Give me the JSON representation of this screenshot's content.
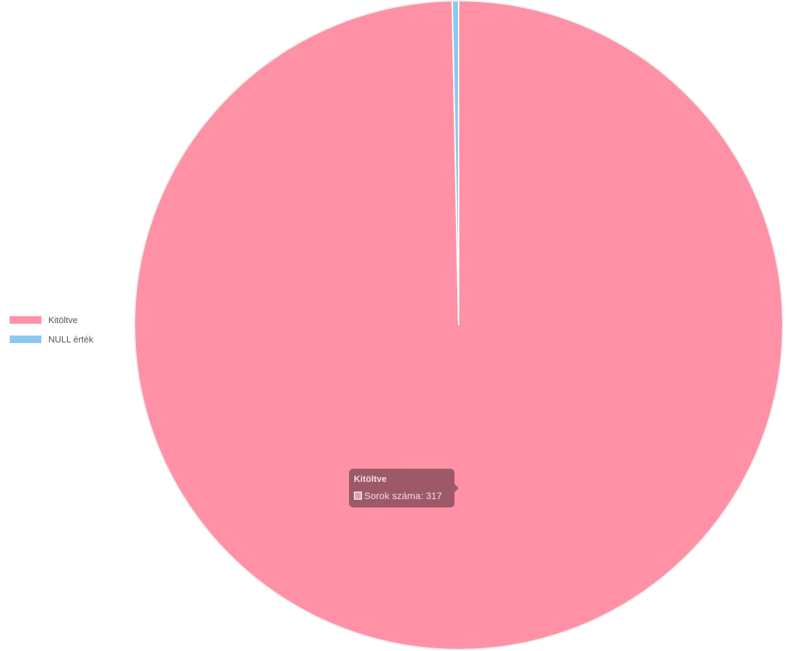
{
  "chart_data": {
    "type": "pie",
    "categories": [
      "Kitöltve",
      "NULL érték"
    ],
    "series": [
      {
        "name": "Sorok száma",
        "values": [
          317,
          1
        ]
      }
    ],
    "colors": [
      "#ff91a7",
      "#8cc9f2"
    ],
    "legend_position": "left",
    "tooltip": {
      "title": "Kitöltve",
      "label": "Sorok száma: 317",
      "swatch_color": "#d4a5ae"
    }
  }
}
